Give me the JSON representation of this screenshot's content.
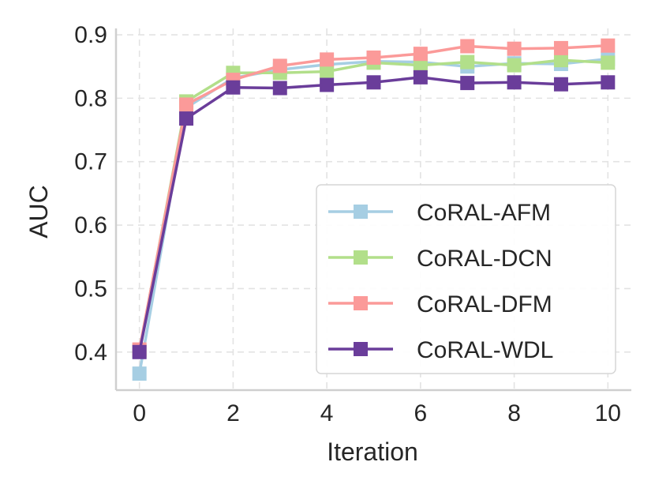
{
  "chart_data": {
    "type": "line",
    "title": "",
    "xlabel": "Iteration",
    "ylabel": "AUC",
    "x": [
      0,
      1,
      2,
      3,
      4,
      5,
      6,
      7,
      8,
      9,
      10
    ],
    "xlim": [
      -0.5,
      10.5
    ],
    "ylim": [
      0.34,
      0.91
    ],
    "xticks": [
      0,
      2,
      4,
      6,
      8,
      10
    ],
    "yticks": [
      0.4,
      0.5,
      0.6,
      0.7,
      0.8,
      0.9
    ],
    "ytick_labels": [
      "0.4",
      "0.5",
      "0.6",
      "0.7",
      "0.8",
      "0.9"
    ],
    "grid": true,
    "legend_position": "bottom-right",
    "series": [
      {
        "name": "CoRAL-AFM",
        "color": "#a6cee3",
        "marker": "square",
        "values": [
          0.366,
          0.785,
          0.832,
          0.845,
          0.853,
          0.858,
          0.857,
          0.85,
          0.855,
          0.854,
          0.862
        ]
      },
      {
        "name": "CoRAL-DCN",
        "color": "#b2df8a",
        "marker": "square",
        "values": [
          0.402,
          0.795,
          0.84,
          0.84,
          0.842,
          0.856,
          0.852,
          0.857,
          0.852,
          0.86,
          0.856
        ]
      },
      {
        "name": "CoRAL-DFM",
        "color": "#fb9a99",
        "marker": "square",
        "values": [
          0.404,
          0.79,
          0.829,
          0.851,
          0.861,
          0.864,
          0.87,
          0.882,
          0.878,
          0.879,
          0.883
        ]
      },
      {
        "name": "CoRAL-WDL",
        "color": "#6a3d9a",
        "marker": "square",
        "values": [
          0.4,
          0.768,
          0.817,
          0.816,
          0.821,
          0.825,
          0.833,
          0.824,
          0.825,
          0.822,
          0.825
        ]
      }
    ]
  }
}
